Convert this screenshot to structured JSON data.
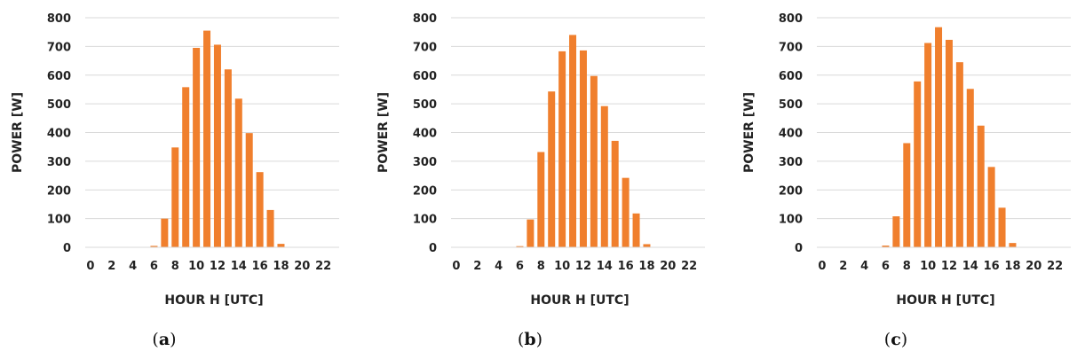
{
  "chart_data": [
    {
      "type": "bar",
      "panel": "(a)",
      "panel_letter": "a",
      "x": [
        0,
        1,
        2,
        3,
        4,
        5,
        6,
        7,
        8,
        9,
        10,
        11,
        12,
        13,
        14,
        15,
        16,
        17,
        18,
        19,
        20,
        21,
        22,
        23
      ],
      "values": [
        0,
        0,
        0,
        0,
        0,
        0,
        5,
        100,
        348,
        558,
        695,
        755,
        706,
        620,
        518,
        398,
        262,
        130,
        12,
        0,
        0,
        0,
        0,
        0
      ],
      "xticks": [
        "0",
        "2",
        "4",
        "6",
        "8",
        "10",
        "12",
        "14",
        "16",
        "18",
        "20",
        "22"
      ],
      "yticks": [
        "0",
        "100",
        "200",
        "300",
        "400",
        "500",
        "600",
        "700",
        "800"
      ],
      "xlabel": "HOUR H [UTC]",
      "ylabel": "POWER [W]",
      "ylim": [
        0,
        800
      ],
      "grid": true,
      "color": "#f07f2d"
    },
    {
      "type": "bar",
      "panel": "(b)",
      "panel_letter": "b",
      "x": [
        0,
        1,
        2,
        3,
        4,
        5,
        6,
        7,
        8,
        9,
        10,
        11,
        12,
        13,
        14,
        15,
        16,
        17,
        18,
        19,
        20,
        21,
        22,
        23
      ],
      "values": [
        0,
        0,
        0,
        0,
        0,
        0,
        4,
        97,
        332,
        543,
        683,
        740,
        686,
        597,
        492,
        371,
        242,
        118,
        11,
        0,
        0,
        0,
        0,
        0
      ],
      "xticks": [
        "0",
        "2",
        "4",
        "6",
        "8",
        "10",
        "12",
        "14",
        "16",
        "18",
        "20",
        "22"
      ],
      "yticks": [
        "0",
        "100",
        "200",
        "300",
        "400",
        "500",
        "600",
        "700",
        "800"
      ],
      "xlabel": "HOUR H [UTC]",
      "ylabel": "POWER [W]",
      "ylim": [
        0,
        800
      ],
      "grid": true,
      "color": "#f07f2d"
    },
    {
      "type": "bar",
      "panel": "(c)",
      "panel_letter": "c",
      "x": [
        0,
        1,
        2,
        3,
        4,
        5,
        6,
        7,
        8,
        9,
        10,
        11,
        12,
        13,
        14,
        15,
        16,
        17,
        18,
        19,
        20,
        21,
        22,
        23
      ],
      "values": [
        0,
        0,
        0,
        0,
        0,
        0,
        6,
        108,
        363,
        578,
        712,
        767,
        723,
        645,
        552,
        424,
        280,
        138,
        15,
        0,
        0,
        0,
        0,
        0
      ],
      "xticks": [
        "0",
        "2",
        "4",
        "6",
        "8",
        "10",
        "12",
        "14",
        "16",
        "18",
        "20",
        "22"
      ],
      "yticks": [
        "0",
        "100",
        "200",
        "300",
        "400",
        "500",
        "600",
        "700",
        "800"
      ],
      "xlabel": "HOUR H [UTC]",
      "ylabel": "POWER [W]",
      "ylim": [
        0,
        800
      ],
      "grid": true,
      "color": "#f07f2d"
    }
  ]
}
